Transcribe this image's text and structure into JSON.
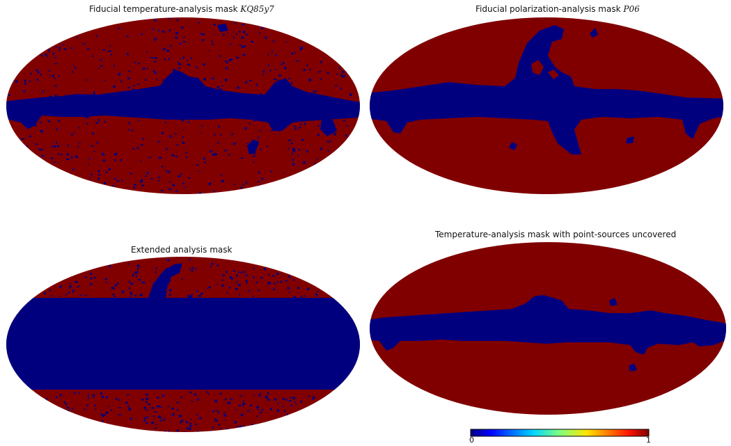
{
  "colors": {
    "mask_on": "#800000",
    "mask_off": "#00007f"
  },
  "maps": [
    {
      "title_text": "Fiducial temperature-analysis mask ",
      "title_math": "KQ85y7",
      "has_point_sources": true,
      "galactic_cut": "narrow"
    },
    {
      "title_text": "Fiducial polarization-analysis mask ",
      "title_math": "P06",
      "has_point_sources": false,
      "galactic_cut": "wide-with-spurs"
    },
    {
      "title_text": "Extended analysis mask",
      "title_math": "",
      "has_point_sources": true,
      "galactic_cut": "band"
    },
    {
      "title_text": "Temperature-analysis mask with point-sources uncovered",
      "title_math": "",
      "has_point_sources": false,
      "galactic_cut": "narrow"
    }
  ],
  "colorbar": {
    "min_label": "0",
    "max_label": "1",
    "colormap": "jet"
  }
}
